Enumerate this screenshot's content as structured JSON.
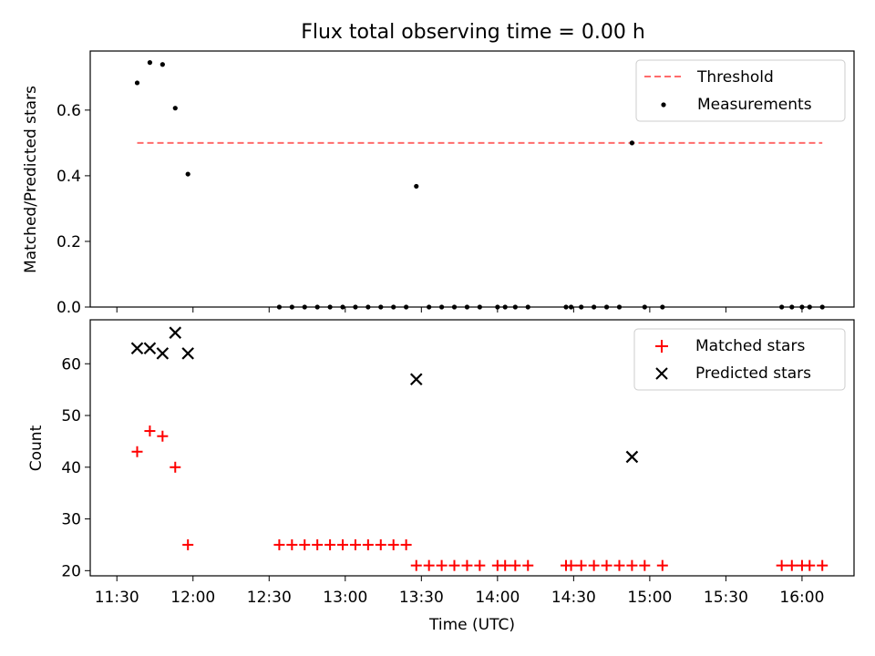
{
  "chart_data": [
    {
      "type": "scatter",
      "title": "Flux total observing time = 0.00 h",
      "ylabel": "Matched/Predicted stars",
      "xlabel": "",
      "ylim": [
        0,
        0.78
      ],
      "yticks": [
        0.0,
        0.2,
        0.4,
        0.6
      ],
      "ytick_labels": [
        "0.0",
        "0.2",
        "0.4",
        "0.6"
      ],
      "legend_position": "top-right",
      "threshold": {
        "name": "Threshold",
        "value": 0.5,
        "x_start": "11:38",
        "x_end": "16:08",
        "color": "#ff6b6b"
      },
      "series": [
        {
          "name": "Measurements",
          "color": "#000000",
          "points": [
            [
              "11:38",
              0.683
            ],
            [
              "11:43",
              0.745
            ],
            [
              "11:48",
              0.739
            ],
            [
              "11:53",
              0.606
            ],
            [
              "11:58",
              0.405
            ],
            [
              "12:34",
              0.0
            ],
            [
              "12:39",
              0.0
            ],
            [
              "12:44",
              0.0
            ],
            [
              "12:49",
              0.0
            ],
            [
              "12:54",
              0.0
            ],
            [
              "12:59",
              0.0
            ],
            [
              "13:04",
              0.0
            ],
            [
              "13:09",
              0.0
            ],
            [
              "13:14",
              0.0
            ],
            [
              "13:19",
              0.0
            ],
            [
              "13:24",
              0.0
            ],
            [
              "13:28",
              0.368
            ],
            [
              "13:33",
              0.0
            ],
            [
              "13:38",
              0.0
            ],
            [
              "13:43",
              0.0
            ],
            [
              "13:48",
              0.0
            ],
            [
              "13:53",
              0.0
            ],
            [
              "14:00",
              0.0
            ],
            [
              "14:03",
              0.0
            ],
            [
              "14:07",
              0.0
            ],
            [
              "14:12",
              0.0
            ],
            [
              "14:27",
              0.0
            ],
            [
              "14:29",
              0.0
            ],
            [
              "14:33",
              0.0
            ],
            [
              "14:38",
              0.0
            ],
            [
              "14:43",
              0.0
            ],
            [
              "14:48",
              0.0
            ],
            [
              "14:53",
              0.5
            ],
            [
              "14:58",
              0.0
            ],
            [
              "15:05",
              0.0
            ],
            [
              "15:52",
              0.0
            ],
            [
              "15:56",
              0.0
            ],
            [
              "16:00",
              0.0
            ],
            [
              "16:03",
              0.0
            ],
            [
              "16:08",
              0.0
            ]
          ]
        }
      ]
    },
    {
      "type": "scatter",
      "title": "",
      "ylabel": "Count",
      "xlabel": "Time (UTC)",
      "ylim": [
        19,
        68.5
      ],
      "yticks": [
        20,
        30,
        40,
        50,
        60
      ],
      "ytick_labels": [
        "20",
        "30",
        "40",
        "50",
        "60"
      ],
      "x_ticks": [
        "11:30",
        "12:00",
        "12:30",
        "13:00",
        "13:30",
        "14:00",
        "14:30",
        "15:00",
        "15:30",
        "16:00"
      ],
      "legend_position": "top-right",
      "series": [
        {
          "name": "Matched stars",
          "marker": "+",
          "color": "#ff0000",
          "points": [
            [
              "11:38",
              43
            ],
            [
              "11:43",
              47
            ],
            [
              "11:48",
              46
            ],
            [
              "11:53",
              40
            ],
            [
              "11:58",
              25
            ],
            [
              "12:34",
              25
            ],
            [
              "12:39",
              25
            ],
            [
              "12:44",
              25
            ],
            [
              "12:49",
              25
            ],
            [
              "12:54",
              25
            ],
            [
              "12:59",
              25
            ],
            [
              "13:04",
              25
            ],
            [
              "13:09",
              25
            ],
            [
              "13:14",
              25
            ],
            [
              "13:19",
              25
            ],
            [
              "13:24",
              25
            ],
            [
              "13:28",
              21
            ],
            [
              "13:33",
              21
            ],
            [
              "13:38",
              21
            ],
            [
              "13:43",
              21
            ],
            [
              "13:48",
              21
            ],
            [
              "13:53",
              21
            ],
            [
              "14:00",
              21
            ],
            [
              "14:03",
              21
            ],
            [
              "14:07",
              21
            ],
            [
              "14:12",
              21
            ],
            [
              "14:27",
              21
            ],
            [
              "14:29",
              21
            ],
            [
              "14:33",
              21
            ],
            [
              "14:38",
              21
            ],
            [
              "14:43",
              21
            ],
            [
              "14:48",
              21
            ],
            [
              "14:53",
              21
            ],
            [
              "14:58",
              21
            ],
            [
              "15:05",
              21
            ],
            [
              "15:52",
              21
            ],
            [
              "15:56",
              21
            ],
            [
              "16:00",
              21
            ],
            [
              "16:03",
              21
            ],
            [
              "16:08",
              21
            ]
          ]
        },
        {
          "name": "Predicted stars",
          "marker": "x",
          "color": "#000000",
          "points": [
            [
              "11:38",
              63
            ],
            [
              "11:43",
              63
            ],
            [
              "11:48",
              62
            ],
            [
              "11:53",
              66
            ],
            [
              "11:58",
              62
            ],
            [
              "13:28",
              57
            ],
            [
              "14:53",
              42
            ]
          ]
        }
      ]
    }
  ]
}
